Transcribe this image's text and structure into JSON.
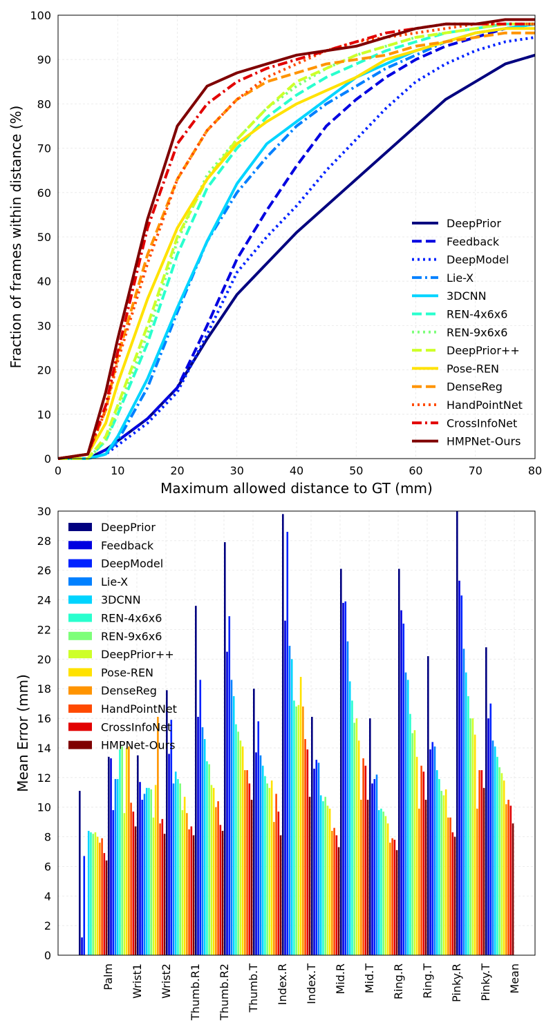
{
  "chart_data": [
    {
      "type": "line",
      "title": "",
      "xlabel": "Maximum allowed distance to GT (mm)",
      "ylabel": "Fraction of frames within distance (%)",
      "xlim": [
        0,
        80
      ],
      "ylim": [
        0,
        100
      ],
      "xticks": [
        "0",
        "10",
        "20",
        "30",
        "40",
        "50",
        "60",
        "70",
        "80"
      ],
      "yticks": [
        "0",
        "10",
        "20",
        "30",
        "40",
        "50",
        "60",
        "70",
        "80",
        "90",
        "100"
      ],
      "grid": true,
      "legend_position": "lower-right",
      "series": [
        {
          "name": "DeepPrior",
          "color": "#00007f",
          "dash": "solid",
          "x": [
            0,
            5,
            8,
            10,
            15,
            20,
            25,
            30,
            35,
            40,
            45,
            50,
            55,
            60,
            65,
            70,
            75,
            80
          ],
          "y": [
            0,
            0,
            2,
            4,
            9,
            16,
            27,
            37,
            44,
            51,
            57,
            63,
            69,
            75,
            81,
            85,
            89,
            91
          ]
        },
        {
          "name": "Feedback",
          "color": "#0000e0",
          "dash": "dashed",
          "x": [
            0,
            5,
            8,
            10,
            15,
            20,
            25,
            30,
            35,
            40,
            45,
            50,
            55,
            60,
            65,
            70,
            75,
            80
          ],
          "y": [
            0,
            0,
            2,
            4,
            9,
            16,
            30,
            45,
            56,
            66,
            75,
            81,
            86,
            90,
            93,
            95,
            97,
            98
          ]
        },
        {
          "name": "DeepModel",
          "color": "#0022ff",
          "dash": "dotted",
          "x": [
            0,
            5,
            8,
            10,
            15,
            20,
            25,
            30,
            35,
            40,
            45,
            50,
            55,
            60,
            65,
            70,
            75,
            80
          ],
          "y": [
            0,
            0,
            1,
            3,
            8,
            15,
            28,
            42,
            50,
            57,
            65,
            72,
            79,
            85,
            89,
            92,
            94,
            95
          ]
        },
        {
          "name": "Lie-X",
          "color": "#0080ff",
          "dash": "dashdot",
          "x": [
            0,
            5,
            8,
            10,
            15,
            20,
            25,
            30,
            35,
            40,
            45,
            50,
            55,
            60,
            65,
            70,
            75,
            80
          ],
          "y": [
            0,
            0,
            1,
            4,
            16,
            33,
            49,
            60,
            68,
            75,
            80,
            84,
            88,
            91,
            94,
            96,
            97,
            98
          ]
        },
        {
          "name": "3DCNN",
          "color": "#00d4ff",
          "dash": "solid",
          "x": [
            0,
            5,
            8,
            10,
            15,
            20,
            25,
            30,
            35,
            40,
            45,
            50,
            55,
            60,
            65,
            70,
            75,
            80
          ],
          "y": [
            0,
            0,
            1,
            5,
            18,
            34,
            49,
            62,
            71,
            76,
            81,
            86,
            89,
            92,
            94,
            96,
            97,
            98
          ]
        },
        {
          "name": "REN-4x6x6",
          "color": "#29ffce",
          "dash": "dashed",
          "x": [
            0,
            5,
            8,
            10,
            15,
            20,
            25,
            30,
            35,
            40,
            45,
            50,
            55,
            60,
            65,
            70,
            75,
            80
          ],
          "y": [
            0,
            0,
            4,
            10,
            26,
            46,
            61,
            70,
            77,
            82,
            86,
            89,
            92,
            94,
            96,
            97,
            98,
            98
          ]
        },
        {
          "name": "REN-9x6x6",
          "color": "#7dff7a",
          "dash": "dotted",
          "x": [
            0,
            5,
            8,
            10,
            15,
            20,
            25,
            30,
            35,
            40,
            45,
            50,
            55,
            60,
            65,
            70,
            75,
            80
          ],
          "y": [
            0,
            0,
            4,
            11,
            28,
            49,
            64,
            72,
            79,
            84,
            88,
            91,
            93,
            95,
            96,
            97,
            98,
            98
          ]
        },
        {
          "name": "DeepPrior++",
          "color": "#ceff29",
          "dash": "dashed",
          "x": [
            0,
            5,
            8,
            10,
            15,
            20,
            25,
            30,
            35,
            40,
            45,
            50,
            55,
            60,
            65,
            70,
            75,
            80
          ],
          "y": [
            0,
            0,
            5,
            12,
            30,
            50,
            63,
            72,
            79,
            85,
            88,
            91,
            93,
            95,
            96,
            97,
            98,
            98
          ]
        },
        {
          "name": "Pose-REN",
          "color": "#ffe200",
          "dash": "solid",
          "x": [
            0,
            5,
            8,
            10,
            15,
            20,
            25,
            30,
            35,
            40,
            45,
            50,
            55,
            60,
            65,
            70,
            75,
            80
          ],
          "y": [
            0,
            1,
            8,
            17,
            36,
            52,
            63,
            71,
            76,
            80,
            83,
            86,
            90,
            92,
            94,
            96,
            97,
            97
          ]
        },
        {
          "name": "DenseReg",
          "color": "#ff9400",
          "dash": "dashed",
          "x": [
            0,
            5,
            8,
            10,
            15,
            20,
            25,
            30,
            35,
            40,
            45,
            50,
            55,
            60,
            65,
            70,
            75,
            80
          ],
          "y": [
            0,
            1,
            11,
            23,
            46,
            63,
            74,
            81,
            85,
            87,
            89,
            90,
            91,
            93,
            94,
            95,
            96,
            96
          ]
        },
        {
          "name": "HandPointNet",
          "color": "#ff4a00",
          "dash": "dotted",
          "x": [
            0,
            5,
            8,
            10,
            15,
            20,
            25,
            30,
            35,
            40,
            45,
            50,
            55,
            60,
            65,
            70,
            75,
            80
          ],
          "y": [
            0,
            1,
            11,
            22,
            44,
            63,
            74,
            81,
            86,
            89,
            92,
            94,
            95,
            96,
            97,
            98,
            98,
            98
          ]
        },
        {
          "name": "CrossInfoNet",
          "color": "#e20000",
          "dash": "dashdot",
          "x": [
            0,
            5,
            8,
            10,
            15,
            20,
            25,
            30,
            35,
            40,
            45,
            50,
            55,
            60,
            65,
            70,
            75,
            80
          ],
          "y": [
            0,
            1,
            12,
            24,
            52,
            71,
            80,
            85,
            88,
            90,
            92,
            94,
            96,
            97,
            98,
            98,
            98,
            98
          ]
        },
        {
          "name": "HMPNet-Ours",
          "color": "#7f0000",
          "dash": "solid",
          "x": [
            0,
            5,
            8,
            10,
            15,
            20,
            25,
            30,
            35,
            40,
            45,
            50,
            55,
            60,
            65,
            70,
            75,
            80
          ],
          "y": [
            0,
            1,
            15,
            27,
            54,
            75,
            84,
            87,
            89,
            91,
            92,
            93,
            95,
            97,
            98,
            98,
            99,
            99
          ]
        }
      ]
    },
    {
      "type": "bar",
      "title": "",
      "xlabel": "",
      "ylabel": "Mean Error (mm)",
      "ylim": [
        0,
        30
      ],
      "yticks": [
        "0",
        "2",
        "4",
        "6",
        "8",
        "10",
        "12",
        "14",
        "16",
        "18",
        "20",
        "22",
        "24",
        "26",
        "28",
        "30"
      ],
      "grid": true,
      "legend_position": "upper-left",
      "categories": [
        "Palm",
        "Wrist1",
        "Wrist2",
        "Thumb.R1",
        "Thumb.R2",
        "Thumb.T",
        "Index.R",
        "Index.T",
        "Mid.R",
        "Mid.T",
        "Ring.R",
        "Ring.T",
        "Pinky.R",
        "Pinky.T",
        "Mean"
      ],
      "series": [
        {
          "name": "DeepPrior",
          "color": "#00007f",
          "values": [
            11.1,
            13.4,
            13.5,
            17.9,
            23.6,
            27.9,
            18.0,
            29.8,
            16.1,
            26.1,
            16.0,
            26.1,
            20.2,
            30.0,
            20.8
          ]
        },
        {
          "name": "Feedback",
          "color": "#0000e0",
          "values": [
            1.2,
            13.3,
            11.7,
            13.6,
            16.1,
            20.5,
            13.7,
            22.6,
            12.6,
            23.8,
            11.6,
            23.3,
            13.9,
            25.3,
            16.0
          ]
        },
        {
          "name": "DeepModel",
          "color": "#0022ff",
          "values": [
            6.7,
            9.8,
            10.5,
            15.9,
            18.6,
            22.9,
            15.8,
            28.6,
            13.2,
            23.9,
            11.9,
            22.4,
            14.4,
            24.3,
            17.0
          ]
        },
        {
          "name": "Lie-X",
          "color": "#0080ff",
          "values": [
            0,
            11.9,
            10.9,
            11.6,
            15.4,
            18.6,
            13.5,
            20.9,
            13.0,
            21.2,
            12.2,
            19.1,
            14.1,
            20.7,
            14.5
          ]
        },
        {
          "name": "3DCNN",
          "color": "#00d4ff",
          "values": [
            8.4,
            11.9,
            11.3,
            12.4,
            14.6,
            17.5,
            12.8,
            20.0,
            10.8,
            18.5,
            9.8,
            18.6,
            12.5,
            19.1,
            14.1
          ]
        },
        {
          "name": "REN-4x6x6",
          "color": "#29ffce",
          "values": [
            8.3,
            13.9,
            11.3,
            11.9,
            13.1,
            15.6,
            12.1,
            17.2,
            10.4,
            17.2,
            9.9,
            16.3,
            11.9,
            17.5,
            13.4
          ]
        },
        {
          "name": "REN-9x6x6",
          "color": "#7dff7a",
          "values": [
            8.2,
            14.1,
            11.2,
            11.6,
            12.9,
            15.1,
            11.6,
            16.8,
            10.7,
            15.7,
            9.7,
            15.0,
            11.1,
            16.0,
            12.7
          ]
        },
        {
          "name": "DeepPrior++",
          "color": "#ceff29",
          "values": [
            8.3,
            9.6,
            9.3,
            9.8,
            11.5,
            14.5,
            11.3,
            16.9,
            10.1,
            16.0,
            9.4,
            15.2,
            10.8,
            16.0,
            12.3
          ]
        },
        {
          "name": "Pose-REN",
          "color": "#ffe200",
          "values": [
            8.0,
            14.0,
            11.5,
            10.7,
            11.3,
            14.1,
            11.8,
            18.8,
            9.9,
            14.5,
            8.9,
            13.4,
            11.2,
            14.9,
            11.8
          ]
        },
        {
          "name": "DenseReg",
          "color": "#ff9400",
          "values": [
            7.6,
            14.1,
            16.1,
            9.6,
            10.0,
            12.5,
            9.0,
            16.8,
            8.4,
            10.5,
            7.6,
            9.9,
            9.3,
            9.9,
            10.2
          ]
        },
        {
          "name": "HandPointNet",
          "color": "#ff4a00",
          "values": [
            7.9,
            10.3,
            8.9,
            8.5,
            10.4,
            12.5,
            10.9,
            14.6,
            8.6,
            13.3,
            7.9,
            12.8,
            9.3,
            12.5,
            10.5
          ]
        },
        {
          "name": "CrossInfoNet",
          "color": "#e20000",
          "values": [
            6.9,
            9.7,
            9.2,
            8.7,
            8.8,
            11.6,
            9.7,
            13.9,
            8.1,
            12.8,
            7.8,
            12.4,
            8.3,
            12.5,
            10.1
          ]
        },
        {
          "name": "HMPNet-Ours",
          "color": "#7f0000",
          "values": [
            6.4,
            8.7,
            8.2,
            8.1,
            8.4,
            10.5,
            8.1,
            10.7,
            7.3,
            10.5,
            7.1,
            10.5,
            8.0,
            11.3,
            8.9
          ]
        }
      ]
    }
  ]
}
